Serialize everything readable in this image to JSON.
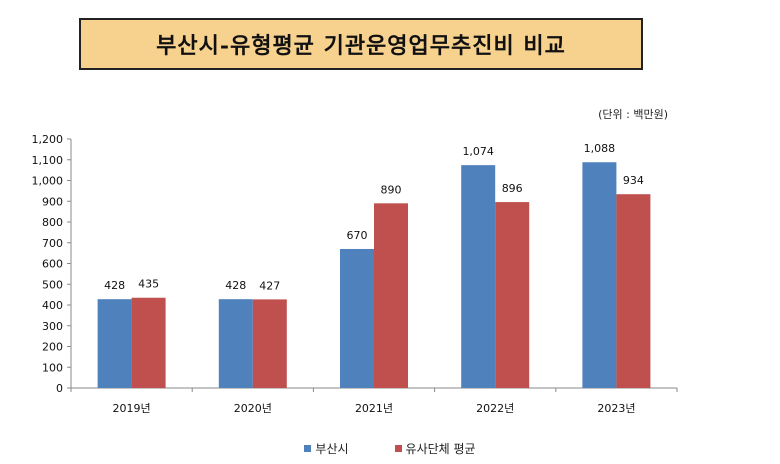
{
  "title": "부산시-유형평균 기관운영업무추진비 비교",
  "unit_label": "(단위 : 백만원)",
  "chart_data": {
    "type": "bar",
    "categories": [
      "2019년",
      "2020년",
      "2021년",
      "2022년",
      "2023년"
    ],
    "series": [
      {
        "name": "부산시",
        "values": [
          428,
          428,
          670,
          1074,
          1088
        ],
        "labels": [
          "428",
          "428",
          "670",
          "1,074",
          "1,088"
        ],
        "color": "#4f81bd"
      },
      {
        "name": "유사단체 평균",
        "values": [
          435,
          427,
          890,
          896,
          934
        ],
        "labels": [
          "435",
          "427",
          "890",
          "896",
          "934"
        ],
        "color": "#c0504d"
      }
    ],
    "yticks": [
      "0",
      "100",
      "200",
      "300",
      "400",
      "500",
      "600",
      "700",
      "800",
      "900",
      "1,000",
      "1,100",
      "1,200"
    ],
    "ylim": [
      0,
      1200
    ],
    "grid": false,
    "legend_position": "bottom"
  }
}
